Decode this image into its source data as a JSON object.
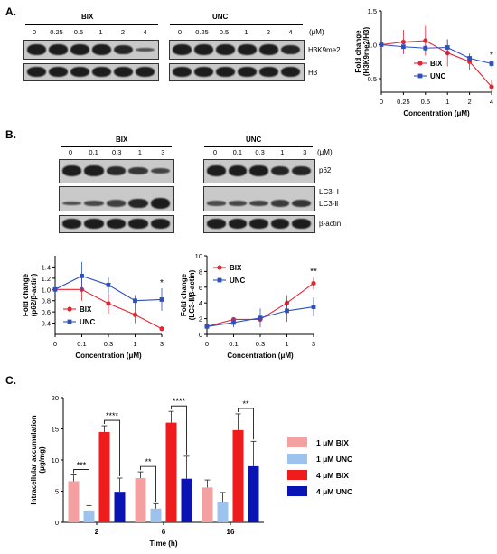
{
  "panels": {
    "a": "A.",
    "b": "B.",
    "c": "C."
  },
  "panelA": {
    "groups": [
      "BIX",
      "UNC"
    ],
    "unit": "(μM)",
    "lanes": [
      "0",
      "0.25",
      "0.5",
      "1",
      "2",
      "4"
    ],
    "blots": [
      "H3K9me2",
      "H3"
    ]
  },
  "panelB": {
    "groups": [
      "BIX",
      "UNC"
    ],
    "unit": "(μM)",
    "lanes": [
      "0",
      "0.1",
      "0.3",
      "1",
      "3"
    ],
    "blots": [
      "p62",
      "LC3- Ⅰ",
      "LC3-Ⅱ",
      "β-actin"
    ]
  },
  "colors": {
    "bix": "#e32636",
    "unc": "#2f4fbf",
    "bix_light": "#f4a0a0",
    "unc_light": "#9cc3ee",
    "bix_dark": "#ee1c1c",
    "unc_dark": "#0a14b4"
  },
  "chart_data": [
    {
      "id": "A",
      "type": "line",
      "x": [
        "0",
        "0.25",
        "0.5",
        "1",
        "2",
        "4"
      ],
      "xlabel": "Concentration (μM)",
      "ylabel": "Fold change\n(H3K9me2/H3)",
      "ylim": [
        0.3,
        1.5
      ],
      "yticks": [
        "0.5",
        "1.0",
        "1.5"
      ],
      "series": [
        {
          "name": "BIX",
          "values": [
            1.0,
            1.04,
            1.06,
            0.88,
            0.75,
            0.38
          ],
          "errors": [
            0.0,
            0.18,
            0.22,
            0.2,
            0.12,
            0.1
          ]
        },
        {
          "name": "UNC",
          "values": [
            1.0,
            0.97,
            0.95,
            0.96,
            0.8,
            0.72
          ],
          "errors": [
            0.0,
            0.05,
            0.05,
            0.12,
            0.05,
            0.05
          ]
        }
      ],
      "annotations": [
        "*"
      ],
      "legend": "right"
    },
    {
      "id": "B1",
      "type": "line",
      "x": [
        "0",
        "0.1",
        "0.3",
        "1",
        "3"
      ],
      "xlabel": "Concentration (μM)",
      "ylabel": "Fold change\n(p62/β-actin)",
      "ylim": [
        0.2,
        1.6
      ],
      "yticks": [
        "0.4",
        "0.6",
        "0.8",
        "1.0",
        "1.2",
        "1.4"
      ],
      "series": [
        {
          "name": "BIX",
          "values": [
            1.0,
            1.0,
            0.75,
            0.55,
            0.3
          ],
          "errors": [
            0.0,
            0.2,
            0.18,
            0.15,
            0.04
          ]
        },
        {
          "name": "UNC",
          "values": [
            1.0,
            1.24,
            1.08,
            0.8,
            0.82
          ],
          "errors": [
            0.0,
            0.25,
            0.14,
            0.1,
            0.2
          ]
        }
      ],
      "annotations": [
        "*"
      ],
      "legend": "bottom-left"
    },
    {
      "id": "B2",
      "type": "line",
      "x": [
        "0",
        "0.1",
        "0.3",
        "1",
        "3"
      ],
      "xlabel": "Concentration (μM)",
      "ylabel": "Fold change\n(LC3-Ⅱ/β-actin)",
      "ylim": [
        0,
        10
      ],
      "yticks": [
        "0",
        "2",
        "4",
        "6",
        "8",
        "10"
      ],
      "series": [
        {
          "name": "BIX",
          "values": [
            1.0,
            1.9,
            1.9,
            4.0,
            6.5
          ],
          "errors": [
            0.0,
            0.3,
            0.3,
            1.0,
            0.8
          ]
        },
        {
          "name": "UNC",
          "values": [
            1.0,
            1.5,
            2.1,
            3.0,
            3.5
          ],
          "errors": [
            0.0,
            0.6,
            1.2,
            1.4,
            1.2
          ]
        }
      ],
      "annotations": [
        "**"
      ],
      "legend": "top-left"
    },
    {
      "id": "C",
      "type": "bar",
      "categories": [
        "2",
        "6",
        "16"
      ],
      "xlabel": "Time (h)",
      "ylabel": "Intracellular accumulation\n(μg/mg)",
      "ylim": [
        0,
        20
      ],
      "yticks": [
        "0",
        "5",
        "10",
        "15",
        "20"
      ],
      "series": [
        {
          "name": "1 μM BIX",
          "values": [
            6.6,
            7.1,
            5.6
          ],
          "errors": [
            1.0,
            1.0,
            1.2
          ]
        },
        {
          "name": "1 μM UNC",
          "values": [
            1.9,
            2.2,
            3.2
          ],
          "errors": [
            0.8,
            0.8,
            1.6
          ]
        },
        {
          "name": "4 μM BIX",
          "values": [
            14.5,
            16.0,
            14.8
          ],
          "errors": [
            1.0,
            1.8,
            2.6
          ]
        },
        {
          "name": "4 μM UNC",
          "values": [
            4.9,
            7.0,
            9.0
          ],
          "errors": [
            2.2,
            3.6,
            4.0
          ]
        }
      ],
      "significance": [
        {
          "cat": 0,
          "from": 0,
          "to": 1,
          "label": "***"
        },
        {
          "cat": 0,
          "from": 2,
          "to": 3,
          "label": "****"
        },
        {
          "cat": 1,
          "from": 0,
          "to": 1,
          "label": "**"
        },
        {
          "cat": 1,
          "from": 2,
          "to": 3,
          "label": "****"
        },
        {
          "cat": 2,
          "from": 2,
          "to": 3,
          "label": "**"
        }
      ],
      "legend": "right"
    }
  ]
}
